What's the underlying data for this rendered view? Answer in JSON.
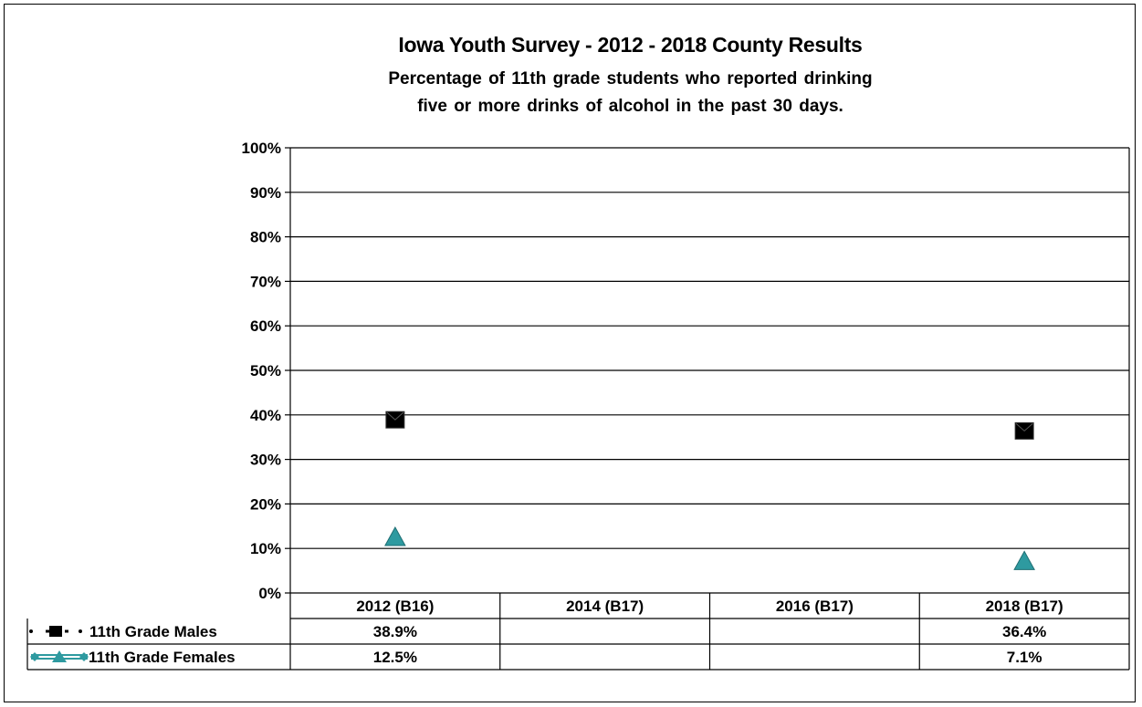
{
  "titles": {
    "main": "Iowa Youth Survey - 2012 - 2018 County Results",
    "sub1": "Percentage of 11th grade students who reported drinking",
    "sub2": "five or more drinks of alcohol in the past 30 days."
  },
  "chart_data": {
    "type": "scatter",
    "title": "Iowa Youth Survey - 2012 - 2018 County Results",
    "subtitle": "Percentage of 11th grade students who reported drinking five or more drinks of alcohol in the past 30 days.",
    "categories": [
      "2012 (B16)",
      "2014 (B17)",
      "2016 (B17)",
      "2018 (B17)"
    ],
    "yticks": [
      "0%",
      "10%",
      "20%",
      "30%",
      "40%",
      "50%",
      "60%",
      "70%",
      "80%",
      "90%",
      "100%"
    ],
    "ylim": [
      0,
      100
    ],
    "grid": true,
    "legend": "data-table-left",
    "series": [
      {
        "name": "11th Grade Males",
        "marker": "square",
        "color": "#000000",
        "values": [
          38.9,
          null,
          null,
          36.4
        ],
        "labels": [
          "38.9%",
          "",
          "",
          "36.4%"
        ]
      },
      {
        "name": "11th Grade Females",
        "marker": "triangle",
        "color": "#2E9AA0",
        "values": [
          12.5,
          null,
          null,
          7.1
        ],
        "labels": [
          "12.5%",
          "",
          "",
          "7.1%"
        ]
      }
    ]
  }
}
